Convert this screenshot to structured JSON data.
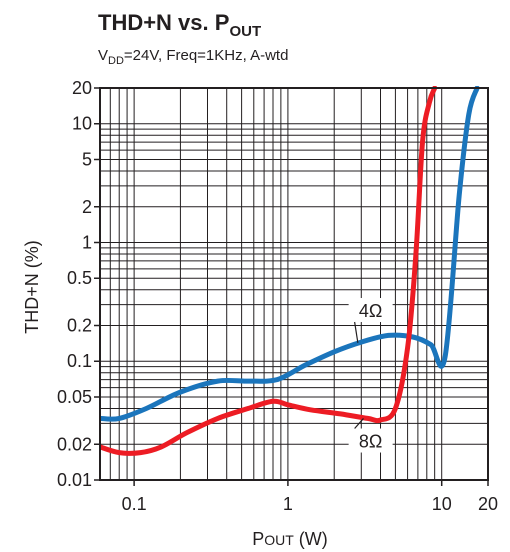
{
  "chart_data": {
    "type": "line",
    "title": {
      "main": "THD+N vs. P",
      "main_sub": "OUT"
    },
    "subtitle": {
      "v": "V",
      "v_sub": "DD",
      "rest": "=24V, Freq=1KHz, A-wtd"
    },
    "xlabel": {
      "p": "P",
      "out": "OUT",
      "unit": " (W)"
    },
    "ylabel": "THD+N (%)",
    "x_scale": "log",
    "y_scale": "log",
    "xlim": [
      0.06,
      20
    ],
    "ylim": [
      0.01,
      20
    ],
    "x_tick_labels": [
      {
        "value": 0.1,
        "label": "0.1"
      },
      {
        "value": 1,
        "label": "1"
      },
      {
        "value": 10,
        "label": "10"
      },
      {
        "value": 20,
        "label": "20"
      }
    ],
    "y_tick_labels": [
      {
        "value": 0.01,
        "label": "0.01"
      },
      {
        "value": 0.02,
        "label": "0.02"
      },
      {
        "value": 0.05,
        "label": "0.05"
      },
      {
        "value": 0.1,
        "label": "0.1"
      },
      {
        "value": 0.2,
        "label": "0.2"
      },
      {
        "value": 0.5,
        "label": "0.5"
      },
      {
        "value": 1,
        "label": "1"
      },
      {
        "value": 2,
        "label": "2"
      },
      {
        "value": 5,
        "label": "5"
      },
      {
        "value": 10,
        "label": "10"
      },
      {
        "value": 20,
        "label": "20"
      }
    ],
    "grid": true,
    "series": [
      {
        "name": "4Ω",
        "color": "#1b75bc",
        "x": [
          0.06,
          0.08,
          0.12,
          0.2,
          0.35,
          0.55,
          0.85,
          1.3,
          2.0,
          3.0,
          4.5,
          6.5,
          8.5,
          10.5,
          13.0,
          15.0,
          17.0
        ],
        "y": [
          0.033,
          0.033,
          0.04,
          0.055,
          0.068,
          0.068,
          0.07,
          0.093,
          0.12,
          0.145,
          0.165,
          0.16,
          0.138,
          0.108,
          2.5,
          12.0,
          20.0
        ]
      },
      {
        "name": "8Ω",
        "color": "#ed1c24",
        "x": [
          0.06,
          0.08,
          0.11,
          0.15,
          0.22,
          0.35,
          0.55,
          0.8,
          1.0,
          1.4,
          2.2,
          3.3,
          4.0,
          5.0,
          6.0,
          6.8,
          7.5,
          8.3,
          9.0
        ],
        "y": [
          0.019,
          0.017,
          0.017,
          0.019,
          0.025,
          0.033,
          0.04,
          0.046,
          0.043,
          0.039,
          0.036,
          0.033,
          0.032,
          0.04,
          0.13,
          0.8,
          7.0,
          15.0,
          20.0
        ]
      }
    ],
    "annotations": [
      {
        "text": "4Ω",
        "series": "4Ω",
        "label_x": 3.45,
        "label_y": 0.27,
        "point_x": 2.85,
        "point_y": 0.143
      },
      {
        "text": "8Ω",
        "series": "8Ω",
        "label_x": 3.45,
        "label_y": 0.0215,
        "point_x": 3.1,
        "point_y": 0.033
      }
    ]
  }
}
